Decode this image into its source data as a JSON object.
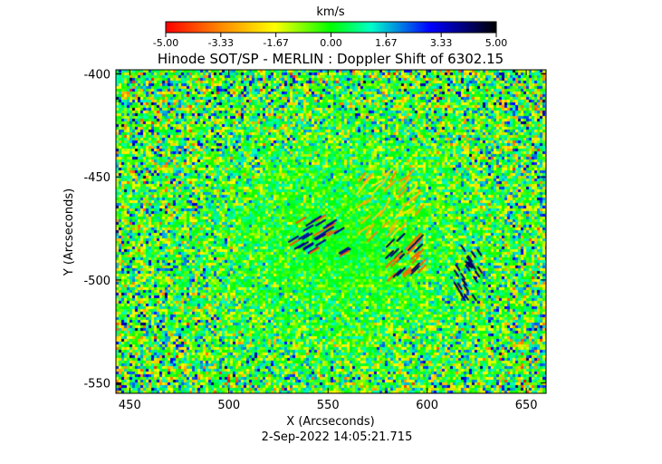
{
  "colorbar": {
    "unit": "km/s",
    "ticks": [
      "-5.00",
      "-3.33",
      "-1.67",
      "0.00",
      "1.67",
      "3.33",
      "5.00"
    ],
    "range": [
      -5,
      5
    ]
  },
  "chart_data": {
    "type": "heatmap",
    "title": "Hinode SOT/SP - MERLIN : Doppler Shift of 6302.15",
    "xlabel": "X (Arcseconds)",
    "ylabel": "Y (Arcseconds)",
    "xlim": [
      443,
      660
    ],
    "ylim": [
      -555,
      -398
    ],
    "x_ticks": [
      "450",
      "500",
      "550",
      "600",
      "650"
    ],
    "y_ticks": [
      "-400",
      "-450",
      "-500",
      "-550"
    ],
    "value_unit": "km/s",
    "value_range": [
      -5,
      5
    ],
    "colormap_stops": [
      "#ff0000",
      "#ff8c00",
      "#ffff00",
      "#00ff00",
      "#00ffc8",
      "#0000ff",
      "#000000"
    ]
  },
  "timestamp": "2-Sep-2022 14:05:21.715"
}
